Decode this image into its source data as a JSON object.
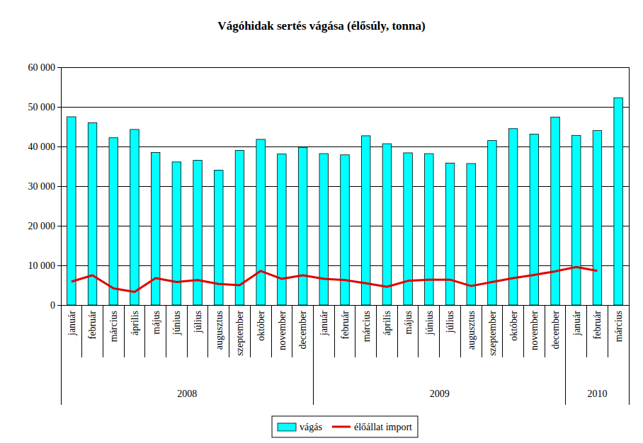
{
  "chart_data": {
    "type": "bar",
    "title": "Vágóhidak sertés vágása (élősúly, tonna)",
    "categories": [
      "január",
      "február",
      "március",
      "április",
      "május",
      "június",
      "július",
      "augusztus",
      "szeptember",
      "október",
      "november",
      "december",
      "január",
      "február",
      "március",
      "április",
      "május",
      "június",
      "július",
      "augusztus",
      "szeptember",
      "október",
      "november",
      "december",
      "január",
      "február",
      "március"
    ],
    "groups": [
      {
        "name": "2008",
        "start": 0,
        "end": 11
      },
      {
        "name": "2009",
        "start": 12,
        "end": 23
      },
      {
        "name": "2010",
        "start": 24,
        "end": 26
      }
    ],
    "series": [
      {
        "name": "vágás",
        "type": "bar",
        "color": "#00FFFF",
        "values": [
          47500,
          46000,
          42200,
          44300,
          38500,
          36100,
          36500,
          34000,
          39000,
          41800,
          38100,
          39800,
          38200,
          37900,
          42700,
          40700,
          38400,
          38200,
          35800,
          35700,
          41500,
          44500,
          43100,
          47400,
          42800,
          44000,
          52300
        ]
      },
      {
        "name": "élőállat import",
        "type": "line",
        "color": "#E00000",
        "values": [
          5900,
          7500,
          4200,
          3300,
          6800,
          5800,
          6300,
          5300,
          5000,
          8600,
          6600,
          7500,
          6600,
          6300,
          5500,
          4600,
          6100,
          6400,
          6400,
          4800,
          5800,
          6800,
          7600,
          8500,
          9600,
          8600,
          null
        ]
      }
    ],
    "ylim": [
      0,
      60000
    ],
    "yticks": [
      0,
      {
        "value": 10000,
        "label": "10 000"
      },
      {
        "value": 20000,
        "label": "20 000"
      },
      {
        "value": 30000,
        "label": "30 000"
      },
      {
        "value": 40000,
        "label": "40 000"
      },
      {
        "value": 50000,
        "label": "50 000"
      },
      {
        "value": 60000,
        "label": "60 000"
      }
    ],
    "grid": true,
    "legend": "bottom"
  }
}
